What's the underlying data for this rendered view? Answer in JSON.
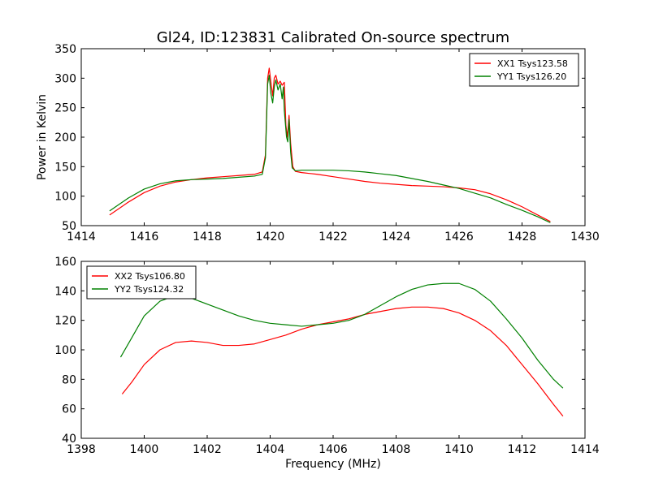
{
  "figure": {
    "title": "Gl24, ID:123831 Calibrated On-source spectrum"
  },
  "chart_data": [
    {
      "type": "line",
      "title": "Gl24, ID:123831 Calibrated On-source spectrum",
      "xlabel": "",
      "ylabel": "Power in Kelvin",
      "xlim": [
        1414,
        1430
      ],
      "ylim": [
        50,
        350
      ],
      "xticks": [
        1414,
        1416,
        1418,
        1420,
        1422,
        1424,
        1426,
        1428,
        1430
      ],
      "yticks": [
        50,
        100,
        150,
        200,
        250,
        300,
        350
      ],
      "legend": "top-right",
      "grid": false,
      "series": [
        {
          "name": "XX1 Tsys123.58",
          "color": "#ff0000",
          "points": [
            [
              1414.9,
              68
            ],
            [
              1415.5,
              90
            ],
            [
              1416.0,
              106
            ],
            [
              1416.5,
              117
            ],
            [
              1417.0,
              124
            ],
            [
              1417.5,
              128
            ],
            [
              1418.0,
              131
            ],
            [
              1418.5,
              133
            ],
            [
              1419.0,
              135
            ],
            [
              1419.5,
              137
            ],
            [
              1419.75,
              141
            ],
            [
              1419.85,
              170
            ],
            [
              1419.92,
              300
            ],
            [
              1419.97,
              317
            ],
            [
              1420.02,
              295
            ],
            [
              1420.08,
              270
            ],
            [
              1420.13,
              300
            ],
            [
              1420.18,
              305
            ],
            [
              1420.25,
              290
            ],
            [
              1420.32,
              295
            ],
            [
              1420.38,
              288
            ],
            [
              1420.45,
              293
            ],
            [
              1420.5,
              220
            ],
            [
              1420.55,
              200
            ],
            [
              1420.6,
              237
            ],
            [
              1420.65,
              190
            ],
            [
              1420.72,
              150
            ],
            [
              1420.8,
              142
            ],
            [
              1421.0,
              140
            ],
            [
              1421.5,
              137
            ],
            [
              1422.0,
              133
            ],
            [
              1422.5,
              129
            ],
            [
              1423.0,
              125
            ],
            [
              1423.5,
              122
            ],
            [
              1424.0,
              120
            ],
            [
              1424.5,
              118
            ],
            [
              1425.0,
              117
            ],
            [
              1425.5,
              116
            ],
            [
              1426.0,
              114
            ],
            [
              1426.5,
              111
            ],
            [
              1427.0,
              104
            ],
            [
              1427.5,
              94
            ],
            [
              1428.0,
              82
            ],
            [
              1428.5,
              68
            ],
            [
              1428.9,
              57
            ]
          ]
        },
        {
          "name": "YY1 Tsys126.20",
          "color": "#008000",
          "points": [
            [
              1414.9,
              75
            ],
            [
              1415.5,
              97
            ],
            [
              1416.0,
              112
            ],
            [
              1416.5,
              121
            ],
            [
              1417.0,
              126
            ],
            [
              1417.5,
              128
            ],
            [
              1418.0,
              129
            ],
            [
              1418.5,
              130
            ],
            [
              1419.0,
              132
            ],
            [
              1419.5,
              134
            ],
            [
              1419.75,
              137
            ],
            [
              1419.85,
              165
            ],
            [
              1419.92,
              290
            ],
            [
              1419.97,
              305
            ],
            [
              1420.02,
              275
            ],
            [
              1420.08,
              258
            ],
            [
              1420.13,
              285
            ],
            [
              1420.18,
              297
            ],
            [
              1420.25,
              280
            ],
            [
              1420.32,
              290
            ],
            [
              1420.38,
              265
            ],
            [
              1420.42,
              285
            ],
            [
              1420.45,
              245
            ],
            [
              1420.52,
              200
            ],
            [
              1420.56,
              192
            ],
            [
              1420.6,
              230
            ],
            [
              1420.65,
              175
            ],
            [
              1420.7,
              148
            ],
            [
              1420.8,
              143
            ],
            [
              1421.0,
              144
            ],
            [
              1421.5,
              144
            ],
            [
              1422.0,
              144
            ],
            [
              1422.5,
              143
            ],
            [
              1423.0,
              141
            ],
            [
              1423.5,
              138
            ],
            [
              1424.0,
              135
            ],
            [
              1424.5,
              130
            ],
            [
              1425.0,
              125
            ],
            [
              1425.5,
              119
            ],
            [
              1426.0,
              113
            ],
            [
              1426.5,
              105
            ],
            [
              1427.0,
              97
            ],
            [
              1427.5,
              86
            ],
            [
              1428.0,
              76
            ],
            [
              1428.5,
              65
            ],
            [
              1428.9,
              55
            ]
          ]
        }
      ]
    },
    {
      "type": "line",
      "title": "",
      "xlabel": "Frequency (MHz)",
      "ylabel": "",
      "xlim": [
        1398,
        1414
      ],
      "ylim": [
        40,
        160
      ],
      "xticks": [
        1398,
        1400,
        1402,
        1404,
        1406,
        1408,
        1410,
        1412,
        1414
      ],
      "yticks": [
        40,
        60,
        80,
        100,
        120,
        140,
        160
      ],
      "legend": "top-left",
      "grid": false,
      "series": [
        {
          "name": "XX2 Tsys106.80",
          "color": "#ff0000",
          "points": [
            [
              1399.3,
              70
            ],
            [
              1399.6,
              78
            ],
            [
              1400.0,
              90
            ],
            [
              1400.5,
              100
            ],
            [
              1401.0,
              105
            ],
            [
              1401.5,
              106
            ],
            [
              1402.0,
              105
            ],
            [
              1402.5,
              103
            ],
            [
              1403.0,
              103
            ],
            [
              1403.5,
              104
            ],
            [
              1404.0,
              107
            ],
            [
              1404.5,
              110
            ],
            [
              1405.0,
              114
            ],
            [
              1405.5,
              117
            ],
            [
              1406.0,
              119
            ],
            [
              1406.5,
              121
            ],
            [
              1407.0,
              124
            ],
            [
              1407.5,
              126
            ],
            [
              1408.0,
              128
            ],
            [
              1408.5,
              129
            ],
            [
              1409.0,
              129
            ],
            [
              1409.5,
              128
            ],
            [
              1410.0,
              125
            ],
            [
              1410.5,
              120
            ],
            [
              1411.0,
              113
            ],
            [
              1411.5,
              103
            ],
            [
              1412.0,
              90
            ],
            [
              1412.5,
              77
            ],
            [
              1413.0,
              63
            ],
            [
              1413.3,
              55
            ]
          ]
        },
        {
          "name": "YY2 Tsys124.32",
          "color": "#008000",
          "points": [
            [
              1399.25,
              95
            ],
            [
              1399.6,
              108
            ],
            [
              1400.0,
              123
            ],
            [
              1400.5,
              133
            ],
            [
              1401.0,
              137
            ],
            [
              1401.5,
              135
            ],
            [
              1402.0,
              131
            ],
            [
              1402.5,
              127
            ],
            [
              1403.0,
              123
            ],
            [
              1403.5,
              120
            ],
            [
              1404.0,
              118
            ],
            [
              1404.5,
              117
            ],
            [
              1405.0,
              116
            ],
            [
              1405.5,
              117
            ],
            [
              1406.0,
              118
            ],
            [
              1406.5,
              120
            ],
            [
              1407.0,
              124
            ],
            [
              1407.5,
              130
            ],
            [
              1408.0,
              136
            ],
            [
              1408.5,
              141
            ],
            [
              1409.0,
              144
            ],
            [
              1409.5,
              145
            ],
            [
              1410.0,
              145
            ],
            [
              1410.5,
              141
            ],
            [
              1411.0,
              133
            ],
            [
              1411.5,
              121
            ],
            [
              1412.0,
              108
            ],
            [
              1412.5,
              93
            ],
            [
              1413.0,
              80
            ],
            [
              1413.3,
              74
            ]
          ]
        }
      ]
    }
  ]
}
